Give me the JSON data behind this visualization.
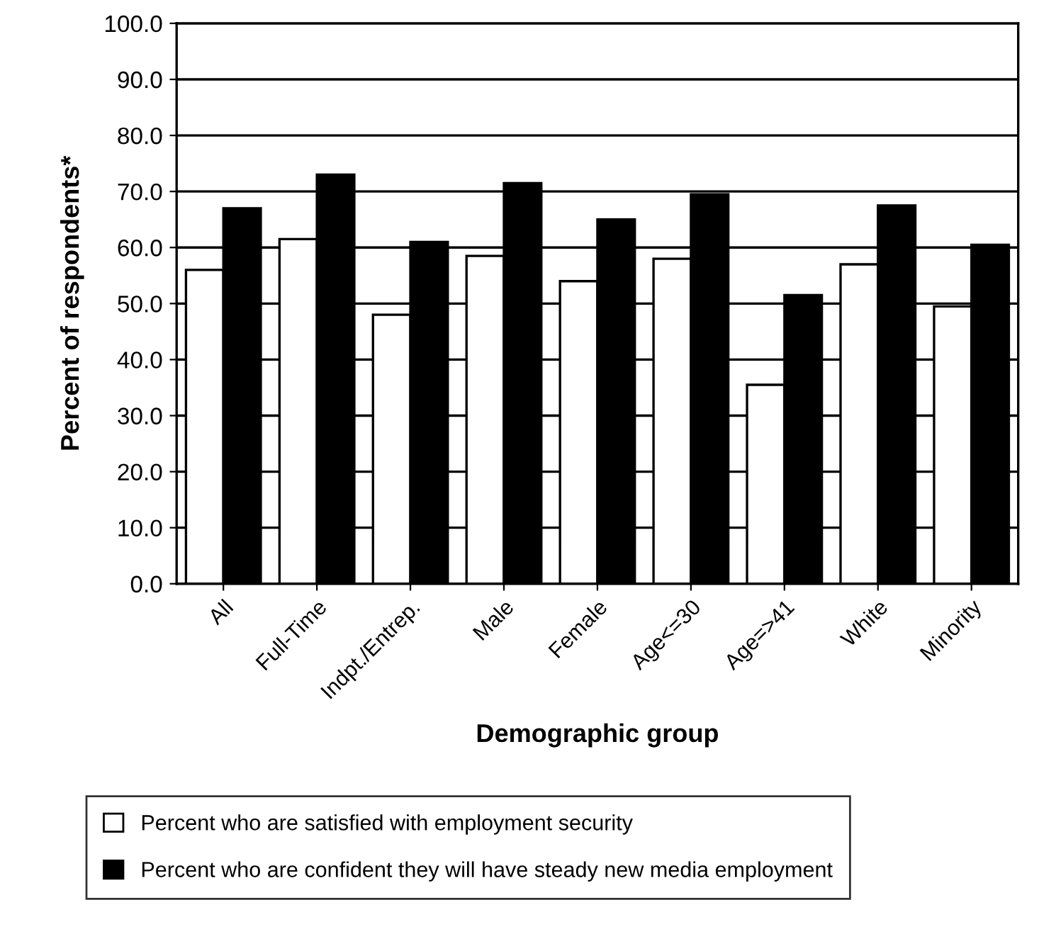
{
  "chart_data": {
    "type": "bar",
    "xlabel": "Demographic group",
    "ylabel": "Percent of respondents*",
    "categories": [
      "All",
      "Full-Time",
      "Indpt./Entrep.",
      "Male",
      "Female",
      "Age<=30",
      "Age=>41",
      "White",
      "Minority"
    ],
    "series": [
      {
        "name": "Percent who are satisfied with employment security",
        "color": "#ffffff",
        "values": [
          56,
          61.5,
          48,
          58.5,
          54,
          58,
          35.5,
          57,
          49.5
        ]
      },
      {
        "name": "Percent who are confident they will have steady new media employment",
        "color": "#000000",
        "values": [
          67,
          73,
          61,
          71.5,
          65,
          69.5,
          51.5,
          67.5,
          60.5
        ]
      }
    ],
    "ylim": [
      0,
      100
    ],
    "yticks": [
      {
        "value": 0,
        "label": "0.0"
      },
      {
        "value": 10,
        "label": "10.0"
      },
      {
        "value": 20,
        "label": "20.0"
      },
      {
        "value": 30,
        "label": "30.0"
      },
      {
        "value": 40,
        "label": "40.0"
      },
      {
        "value": 50,
        "label": "50.0"
      },
      {
        "value": 60,
        "label": "60.0"
      },
      {
        "value": 70,
        "label": "70.0"
      },
      {
        "value": 80,
        "label": "80.0"
      },
      {
        "value": 90,
        "label": "90.0"
      },
      {
        "value": 100,
        "label": "100.0"
      }
    ],
    "grid": "y",
    "legend": "bottom"
  }
}
